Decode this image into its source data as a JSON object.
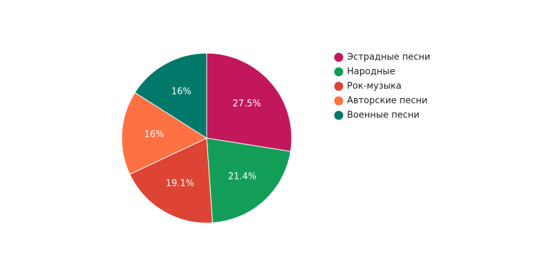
{
  "chart_data": {
    "type": "pie",
    "title": "",
    "slices": [
      {
        "label": "Эстрадные песни",
        "value": 27.5,
        "display": "27.5%",
        "color": "#c2185b"
      },
      {
        "label": "Народные",
        "value": 21.4,
        "display": "21.4%",
        "color": "#129e57"
      },
      {
        "label": "Рок-музыка",
        "value": 19.1,
        "display": "19.1%",
        "color": "#dd4436"
      },
      {
        "label": "Авторские песни",
        "value": 16.0,
        "display": "16%",
        "color": "#ff7043"
      },
      {
        "label": "Военные песни",
        "value": 16.0,
        "display": "16%",
        "color": "#00796b"
      }
    ],
    "start_angle": "12 o'clock",
    "direction": "clockwise",
    "legend_position": "right"
  }
}
